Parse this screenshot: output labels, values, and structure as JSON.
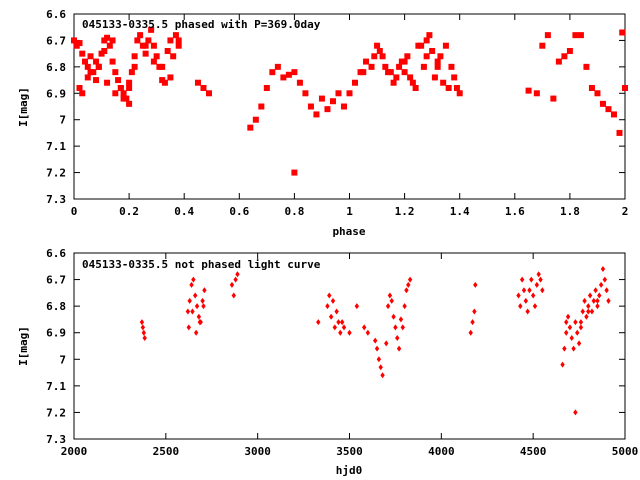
{
  "chart_data": [
    {
      "type": "scatter",
      "title": "045133-0335.5 phased with P=369.0day",
      "xlabel": "phase",
      "ylabel": "I[mag]",
      "xlim": [
        0,
        2
      ],
      "ylim": [
        7.3,
        6.6
      ],
      "y_inverted": true,
      "x_ticks": [
        0,
        0.2,
        0.4,
        0.6,
        0.8,
        1,
        1.2,
        1.4,
        1.6,
        1.8,
        2
      ],
      "x_tick_labels": [
        "0",
        "0.2",
        "0.4",
        "0.6",
        "0.8",
        "1",
        "1.2",
        "1.4",
        "1.6",
        "1.8",
        "2"
      ],
      "y_ticks": [
        6.6,
        6.7,
        6.8,
        6.9,
        7.0,
        7.1,
        7.2,
        7.3
      ],
      "y_tick_labels": [
        "6.6",
        "6.7",
        "6.8",
        "6.9",
        "7",
        "7.1",
        "7.2",
        "7.3"
      ],
      "marker": "filled-square",
      "color": "#ff0000",
      "series": [
        {
          "x": [
            0.0,
            0.01,
            0.02,
            0.03,
            0.04,
            0.05,
            0.06,
            0.07,
            0.08,
            0.09,
            0.1,
            0.11,
            0.12,
            0.13,
            0.14,
            0.15,
            0.16,
            0.17,
            0.18,
            0.19,
            0.2,
            0.21,
            0.22,
            0.23,
            0.24,
            0.25,
            0.26,
            0.27,
            0.28,
            0.29,
            0.3,
            0.31,
            0.32,
            0.33,
            0.34,
            0.35,
            0.36,
            0.37,
            0.38,
            0.02,
            0.05,
            0.08,
            0.11,
            0.14,
            0.17,
            0.2,
            0.03,
            0.06,
            0.09,
            0.12,
            0.15,
            0.18,
            0.2,
            0.22,
            0.26,
            0.29,
            0.32,
            0.35,
            0.38,
            0.45,
            0.47,
            0.49,
            0.64,
            0.66,
            0.68,
            0.7,
            0.72,
            0.74,
            0.76,
            0.78,
            0.8,
            0.82,
            0.84,
            0.86,
            0.88,
            0.9,
            0.92,
            0.94,
            0.96,
            0.98,
            0.8
          ],
          "y": [
            6.7,
            6.72,
            6.71,
            6.75,
            6.78,
            6.8,
            6.76,
            6.82,
            6.85,
            6.8,
            6.75,
            6.7,
            6.69,
            6.72,
            6.78,
            6.82,
            6.85,
            6.88,
            6.9,
            6.92,
            6.88,
            6.82,
            6.76,
            6.7,
            6.68,
            6.72,
            6.75,
            6.7,
            6.66,
            6.72,
            6.76,
            6.8,
            6.85,
            6.86,
            6.74,
            6.7,
            6.76,
            6.68,
            6.72,
            6.88,
            6.84,
            6.78,
            6.74,
            6.7,
            6.88,
            6.94,
            6.9,
            6.82,
            6.8,
            6.86,
            6.9,
            6.92,
            6.86,
            6.8,
            6.72,
            6.78,
            6.8,
            6.84,
            6.7,
            6.86,
            6.88,
            6.9,
            7.03,
            7.0,
            6.95,
            6.88,
            6.82,
            6.8,
            6.84,
            6.83,
            6.82,
            6.86,
            6.9,
            6.95,
            6.98,
            6.92,
            6.96,
            6.93,
            6.9,
            6.95,
            7.2
          ]
        },
        {
          "x": [
            0.98,
            1.0,
            1.02,
            1.04,
            1.06,
            1.08,
            1.1,
            1.12,
            1.14,
            1.16,
            1.18,
            1.2,
            1.22,
            1.24,
            1.26,
            1.28,
            1.3,
            1.32,
            1.34,
            1.36,
            1.38,
            1.4,
            1.05,
            1.09,
            1.13,
            1.17,
            1.21,
            1.25,
            1.29,
            1.33,
            1.37,
            1.11,
            1.15,
            1.19,
            1.23,
            1.27,
            1.31,
            1.35,
            1.39,
            1.2,
            1.28,
            1.32
          ],
          "y": [
            6.95,
            6.9,
            6.86,
            6.82,
            6.78,
            6.8,
            6.72,
            6.76,
            6.82,
            6.86,
            6.8,
            6.78,
            6.84,
            6.88,
            6.72,
            6.7,
            6.74,
            6.78,
            6.86,
            6.88,
            6.84,
            6.9,
            6.82,
            6.76,
            6.8,
            6.84,
            6.76,
            6.72,
            6.68,
            6.76,
            6.8,
            6.74,
            6.82,
            6.78,
            6.86,
            6.8,
            6.84,
            6.72,
            6.88,
            6.82,
            6.76,
            6.8
          ]
        },
        {
          "x": [
            1.65,
            1.68,
            1.7,
            1.72,
            1.74,
            1.76,
            1.78,
            1.8,
            1.82,
            1.84,
            1.86,
            1.88,
            1.9,
            1.92,
            1.94,
            1.96,
            1.98,
            1.99,
            2.0
          ],
          "y": [
            6.89,
            6.9,
            6.72,
            6.68,
            6.92,
            6.78,
            6.76,
            6.74,
            6.68,
            6.68,
            6.8,
            6.88,
            6.9,
            6.94,
            6.96,
            6.98,
            7.05,
            6.67,
            6.88
          ]
        }
      ]
    },
    {
      "type": "scatter",
      "title": "045133-0335.5 not phased light curve",
      "xlabel": "hjd0",
      "ylabel": "I[mag]",
      "xlim": [
        2000,
        5000
      ],
      "ylim": [
        7.3,
        6.6
      ],
      "y_inverted": true,
      "x_ticks": [
        2000,
        2500,
        3000,
        3500,
        4000,
        4500,
        5000
      ],
      "x_tick_labels": [
        "2000",
        "2500",
        "3000",
        "3500",
        "4000",
        "4500",
        "5000"
      ],
      "y_ticks": [
        6.6,
        6.7,
        6.8,
        6.9,
        7.0,
        7.1,
        7.2,
        7.3
      ],
      "y_tick_labels": [
        "6.6",
        "6.7",
        "6.8",
        "6.9",
        "7",
        "7.1",
        "7.2",
        "7.3"
      ],
      "marker": "filled-diamond",
      "color": "#ff0000",
      "series": [
        {
          "x": [
            2370,
            2375,
            2380,
            2385,
            2620,
            2630,
            2640,
            2650,
            2660,
            2670,
            2680,
            2690,
            2700,
            2710,
            2625,
            2645,
            2665,
            2685,
            2705,
            2860,
            2870,
            2880,
            2890,
            3330,
            3380,
            3390,
            3400,
            3410,
            3420,
            3430,
            3440,
            3450,
            3460,
            3470,
            3500,
            3540,
            3580,
            3600,
            3640,
            3650,
            3660,
            3670,
            3680,
            3700,
            3710,
            3720,
            3730,
            3740,
            3750,
            3760,
            3770,
            3780,
            3790,
            3800,
            3810,
            3820,
            3830,
            4160,
            4170,
            4180,
            4185,
            4420,
            4430,
            4440,
            4450,
            4460,
            4470,
            4480,
            4490,
            4500,
            4510,
            4520,
            4530,
            4540,
            4550
          ],
          "y": [
            6.86,
            6.88,
            6.9,
            6.92,
            6.82,
            6.78,
            6.72,
            6.7,
            6.76,
            6.8,
            6.84,
            6.86,
            6.78,
            6.74,
            6.88,
            6.82,
            6.9,
            6.86,
            6.8,
            6.72,
            6.76,
            6.7,
            6.68,
            6.86,
            6.8,
            6.76,
            6.84,
            6.78,
            6.88,
            6.82,
            6.86,
            6.9,
            6.86,
            6.88,
            6.9,
            6.8,
            6.88,
            6.9,
            6.93,
            6.96,
            7.0,
            7.03,
            7.06,
            6.94,
            6.8,
            6.76,
            6.78,
            6.84,
            6.88,
            6.92,
            6.96,
            6.85,
            6.88,
            6.8,
            6.74,
            6.72,
            6.7,
            6.9,
            6.86,
            6.82,
            6.72,
            6.76,
            6.8,
            6.7,
            6.74,
            6.78,
            6.82,
            6.74,
            6.7,
            6.76,
            6.8,
            6.72,
            6.68,
            6.7,
            6.74
          ]
        },
        {
          "x": [
            4660,
            4670,
            4680,
            4690,
            4700,
            4710,
            4720,
            4730,
            4740,
            4750,
            4760,
            4770,
            4780,
            4790,
            4800,
            4810,
            4820,
            4830,
            4840,
            4850,
            4860,
            4870,
            4880,
            4890,
            4900,
            4910,
            4730,
            4680,
            4760,
            4800,
            4850
          ],
          "y": [
            7.02,
            6.96,
            6.9,
            6.84,
            6.88,
            6.92,
            6.96,
            6.86,
            6.9,
            6.94,
            6.86,
            6.82,
            6.78,
            6.84,
            6.8,
            6.76,
            6.82,
            6.78,
            6.74,
            6.8,
            6.76,
            6.72,
            6.66,
            6.7,
            6.74,
            6.78,
            7.2,
            6.86,
            6.88,
            6.82,
            6.78
          ]
        }
      ]
    }
  ]
}
